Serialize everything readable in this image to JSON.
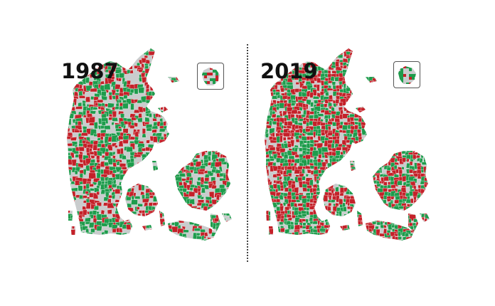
{
  "maps": [
    {
      "year": "1987",
      "density": 0.62,
      "share_red": 0.45
    },
    {
      "year": "2019",
      "density": 0.88,
      "share_red": 0.55
    }
  ],
  "colors": {
    "land": "#c9cccd",
    "red": "#c42129",
    "green": "#1e9c4c",
    "background": "#ffffff",
    "divider": "#444444"
  },
  "icons": {
    "inset": "bornholm-inset-icon"
  }
}
